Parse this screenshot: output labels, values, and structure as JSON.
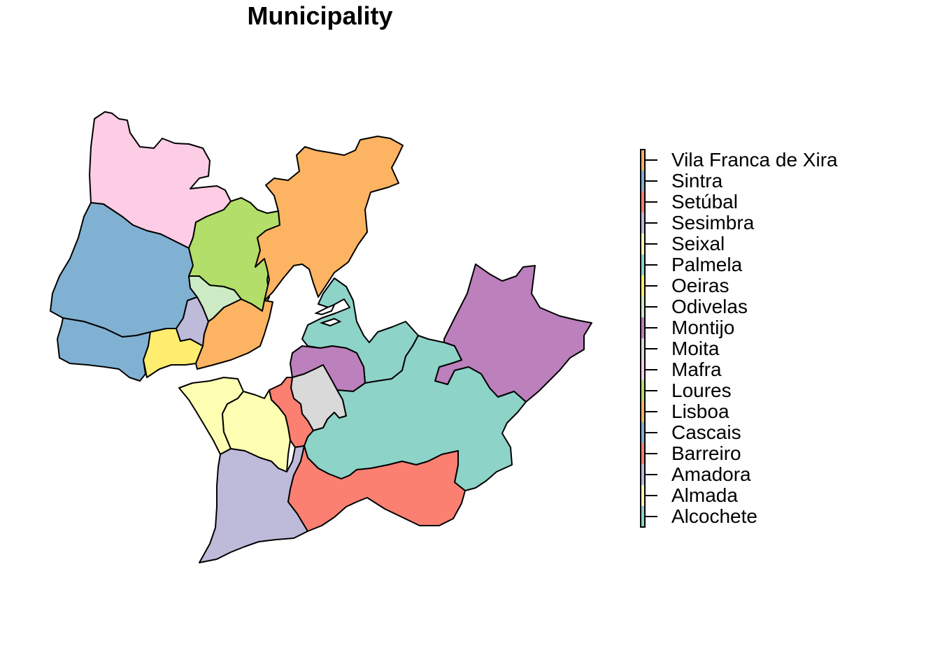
{
  "title": "Municipality",
  "legend": {
    "entries": [
      {
        "name": "Vila Franca de Xira",
        "color": "#fdb462"
      },
      {
        "name": "Sintra",
        "color": "#80b1d3"
      },
      {
        "name": "Setúbal",
        "color": "#fb8072"
      },
      {
        "name": "Sesimbra",
        "color": "#bebada"
      },
      {
        "name": "Seixal",
        "color": "#ffffb3"
      },
      {
        "name": "Palmela",
        "color": "#8dd3c7"
      },
      {
        "name": "Oeiras",
        "color": "#ffed6f"
      },
      {
        "name": "Odivelas",
        "color": "#ccebc5"
      },
      {
        "name": "Montijo",
        "color": "#bc80bd"
      },
      {
        "name": "Moita",
        "color": "#d9d9d9"
      },
      {
        "name": "Mafra",
        "color": "#fccde5"
      },
      {
        "name": "Loures",
        "color": "#b3de69"
      },
      {
        "name": "Lisboa",
        "color": "#fdb462"
      },
      {
        "name": "Cascais",
        "color": "#80b1d3"
      },
      {
        "name": "Barreiro",
        "color": "#fb8072"
      },
      {
        "name": "Amadora",
        "color": "#bebada"
      },
      {
        "name": "Almada",
        "color": "#ffffb3"
      },
      {
        "name": "Alcochete",
        "color": "#8dd3c7"
      }
    ]
  },
  "regions": [
    {
      "name": "Mafra",
      "color": "#fccde5"
    },
    {
      "name": "Sintra",
      "color": "#80b1d3"
    },
    {
      "name": "Cascais",
      "color": "#80b1d3"
    },
    {
      "name": "Oeiras",
      "color": "#ffed6f"
    },
    {
      "name": "Amadora",
      "color": "#bebada"
    },
    {
      "name": "Odivelas",
      "color": "#ccebc5"
    },
    {
      "name": "Loures",
      "color": "#b3de69"
    },
    {
      "name": "Lisboa",
      "color": "#fdb462"
    },
    {
      "name": "Vila Franca de Xira",
      "color": "#fdb462"
    },
    {
      "name": "Alcochete",
      "color": "#8dd3c7"
    },
    {
      "name": "Montijo",
      "color": "#bc80bd"
    },
    {
      "name": "Montijo",
      "color": "#bc80bd"
    },
    {
      "name": "Moita",
      "color": "#d9d9d9"
    },
    {
      "name": "Barreiro",
      "color": "#fb8072"
    },
    {
      "name": "Almada",
      "color": "#ffffb3"
    },
    {
      "name": "Seixal",
      "color": "#ffffb3"
    },
    {
      "name": "Palmela",
      "color": "#8dd3c7"
    },
    {
      "name": "Sesimbra",
      "color": "#bebada"
    },
    {
      "name": "Setúbal",
      "color": "#fb8072"
    }
  ]
}
